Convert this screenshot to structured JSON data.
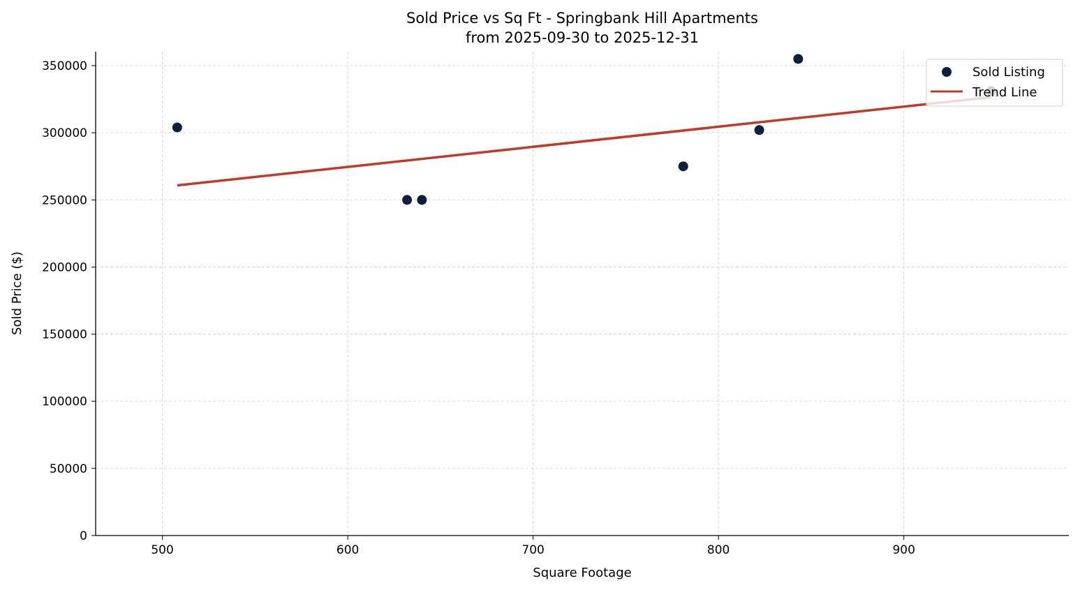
{
  "chart_data": {
    "type": "scatter",
    "title": "Sold Price vs Sq Ft - Springbank Hill Apartments",
    "subtitle": "from 2025-09-30 to 2025-12-31",
    "xlabel": "Square Footage",
    "ylabel": "Sold Price ($)",
    "xlim": [
      464,
      989
    ],
    "ylim": [
      0,
      360400
    ],
    "xticks": [
      500,
      600,
      700,
      800,
      900
    ],
    "yticks": [
      0,
      50000,
      100000,
      150000,
      200000,
      250000,
      300000,
      350000
    ],
    "grid": true,
    "legend_position": "top-right",
    "series": [
      {
        "name": "Sold Listing",
        "type": "scatter",
        "color": "#0d1f3c",
        "points": [
          {
            "x": 508,
            "y": 304000
          },
          {
            "x": 632,
            "y": 250000
          },
          {
            "x": 640,
            "y": 250000
          },
          {
            "x": 781,
            "y": 275000
          },
          {
            "x": 822,
            "y": 302000
          },
          {
            "x": 843,
            "y": 355000
          },
          {
            "x": 947,
            "y": 331000
          }
        ]
      },
      {
        "name": "Trend Line",
        "type": "line",
        "color": "#c0392b",
        "points": [
          {
            "x": 508,
            "y": 260800
          },
          {
            "x": 947,
            "y": 326500
          }
        ]
      }
    ]
  }
}
